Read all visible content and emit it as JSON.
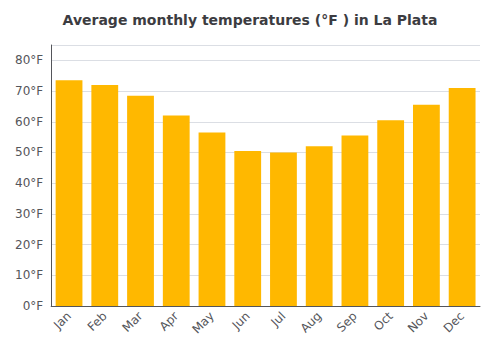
{
  "chart_data": {
    "type": "bar",
    "title": "Average monthly temperatures (°F ) in La Plata",
    "categories": [
      "Jan",
      "Feb",
      "Mar",
      "Apr",
      "May",
      "Jun",
      "Jul",
      "Aug",
      "Sep",
      "Oct",
      "Nov",
      "Dec"
    ],
    "values": [
      73.5,
      72.0,
      68.5,
      62.0,
      56.5,
      50.5,
      50.0,
      52.0,
      55.5,
      60.5,
      65.5,
      71.0
    ],
    "color": "#FFB800",
    "ylim": [
      0,
      85
    ],
    "yticks": [
      {
        "value": 0,
        "label": "0°F"
      },
      {
        "value": 10,
        "label": "10°F"
      },
      {
        "value": 20,
        "label": "20°F"
      },
      {
        "value": 30,
        "label": "30°F"
      },
      {
        "value": 40,
        "label": "40°F"
      },
      {
        "value": 50,
        "label": "50°F"
      },
      {
        "value": 60,
        "label": "60°F"
      },
      {
        "value": 70,
        "label": "70°F"
      },
      {
        "value": 80,
        "label": "80°F"
      }
    ],
    "grid": true
  }
}
